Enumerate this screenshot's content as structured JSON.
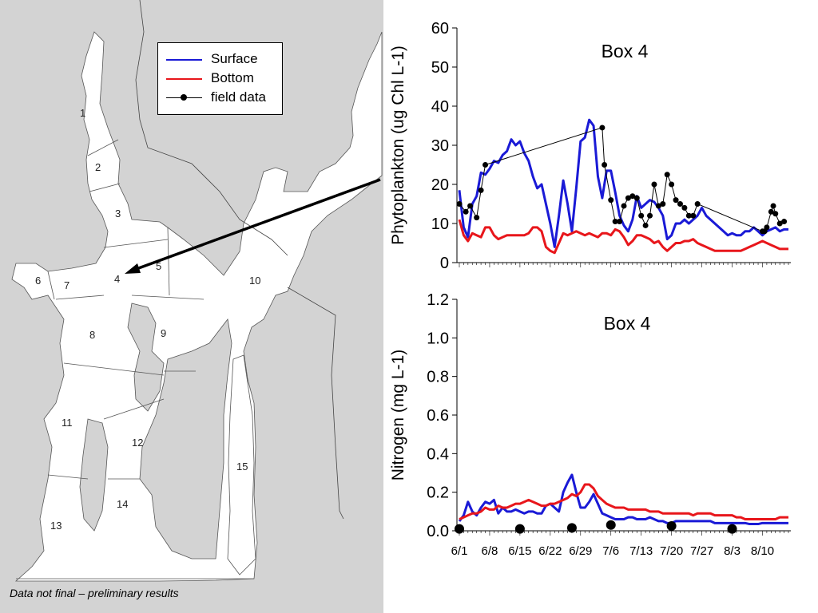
{
  "caption": "Data not final – preliminary results",
  "legend": {
    "items": [
      {
        "label": "Surface",
        "color": "#1a1ad6",
        "kind": "line"
      },
      {
        "label": "Bottom",
        "color": "#e8161b",
        "kind": "line"
      },
      {
        "label": "field data",
        "color": "#000000",
        "kind": "line-dot"
      }
    ]
  },
  "map": {
    "box_labels": [
      "1",
      "2",
      "3",
      "4",
      "5",
      "6",
      "7",
      "8",
      "9",
      "10",
      "11",
      "12",
      "13",
      "14",
      "15"
    ],
    "land_color": "#d3d3d3",
    "water_color": "#ffffff"
  },
  "chart_data": [
    {
      "type": "line",
      "title": "Box 4",
      "ylabel": "Phytoplankton (ug Chl L-1)",
      "ylim": [
        0,
        60
      ],
      "yticks": [
        0,
        10,
        20,
        30,
        40,
        50,
        60
      ],
      "xlim": [
        0,
        76
      ],
      "grid": false,
      "series": [
        {
          "name": "Surface",
          "color": "#1a1ad6",
          "x": [
            0,
            1,
            2,
            3,
            4,
            5,
            6,
            7,
            8,
            9,
            10,
            11,
            12,
            13,
            14,
            15,
            16,
            17,
            18,
            19,
            20,
            21,
            22,
            23,
            24,
            25,
            26,
            27,
            28,
            29,
            30,
            31,
            32,
            33,
            34,
            35,
            36,
            37,
            38,
            39,
            40,
            41,
            42,
            43,
            44,
            45,
            46,
            47,
            48,
            49,
            50,
            51,
            52,
            53,
            54,
            55,
            56,
            57,
            58,
            59,
            60,
            61,
            62,
            63,
            64,
            65,
            66,
            67,
            68,
            69,
            70,
            71,
            72,
            73,
            74,
            75,
            76
          ],
          "y": [
            18.5,
            9,
            6.5,
            15,
            17,
            23,
            22.5,
            24,
            26,
            25.5,
            27.5,
            28.5,
            31.5,
            30,
            31,
            28,
            26,
            22,
            19,
            20,
            15,
            10,
            4,
            12,
            21,
            15,
            8,
            19,
            31,
            32,
            36.5,
            35,
            22,
            16.5,
            23.5,
            23.5,
            18,
            12,
            9.5,
            8,
            11,
            17,
            14,
            15,
            16,
            15.5,
            14,
            12,
            6,
            7,
            10,
            10,
            11,
            10,
            11,
            12,
            14,
            12,
            11,
            10,
            9,
            8,
            7,
            7.5,
            7,
            7,
            8,
            8,
            9,
            8,
            7,
            8,
            8.5,
            9,
            8,
            8.5,
            8.5
          ]
        },
        {
          "name": "Bottom",
          "color": "#e8161b",
          "x": [
            0,
            1,
            2,
            3,
            4,
            5,
            6,
            7,
            8,
            9,
            10,
            11,
            12,
            13,
            14,
            15,
            16,
            17,
            18,
            19,
            20,
            21,
            22,
            23,
            24,
            25,
            26,
            27,
            28,
            29,
            30,
            31,
            32,
            33,
            34,
            35,
            36,
            37,
            38,
            39,
            40,
            41,
            42,
            43,
            44,
            45,
            46,
            47,
            48,
            49,
            50,
            51,
            52,
            53,
            54,
            55,
            56,
            57,
            58,
            59,
            60,
            61,
            62,
            63,
            64,
            65,
            66,
            67,
            68,
            69,
            70,
            71,
            72,
            73,
            74,
            75,
            76
          ],
          "y": [
            11,
            7,
            5.5,
            7.5,
            7,
            6.5,
            9,
            9,
            7,
            6,
            6.5,
            7,
            7,
            7,
            7,
            7,
            7.5,
            9,
            9,
            8,
            4,
            3,
            2.5,
            5,
            7.5,
            7,
            7.5,
            8,
            7.5,
            7,
            7.5,
            7,
            6.5,
            7.5,
            7.5,
            7,
            8.5,
            8,
            6.5,
            4.5,
            5.5,
            7,
            7,
            6.5,
            6,
            5,
            5.5,
            4,
            3,
            4,
            5,
            5,
            5.5,
            5.5,
            6,
            5,
            4.5,
            4,
            3.5,
            3,
            3,
            3,
            3,
            3,
            3,
            3,
            3.5,
            4,
            4.5,
            5,
            5.5,
            5,
            4.5,
            4,
            3.5,
            3.5,
            3.5
          ]
        },
        {
          "name": "field data",
          "color": "#000000",
          "marker": "dot",
          "x": [
            0,
            1.5,
            2.5,
            4,
            5,
            6,
            33,
            33.5,
            35,
            36,
            37,
            38,
            39,
            40,
            41,
            42,
            43,
            44,
            45,
            46,
            47,
            48,
            49,
            50,
            51,
            52,
            53,
            54,
            55,
            56,
            57,
            58,
            59,
            60,
            70,
            70.5,
            71,
            72,
            72.5,
            73,
            74,
            75
          ],
          "y": [
            15,
            13,
            14.5,
            11.5,
            18.5,
            25,
            34.5,
            25,
            16,
            10.5,
            10.5,
            14.5,
            16.5,
            17,
            16.5,
            12,
            9.5,
            12,
            20,
            14.5,
            15,
            22.5,
            20,
            16,
            15,
            14,
            12,
            12,
            15,
            null,
            null,
            null,
            null,
            null,
            8,
            8,
            9,
            13,
            14.5,
            12.5,
            10,
            10.5
          ]
        }
      ]
    },
    {
      "type": "line",
      "title": "Box 4",
      "ylabel": "Nitrogen (mg L-1)",
      "ylim": [
        0,
        1.2
      ],
      "yticks": [
        0.0,
        0.2,
        0.4,
        0.6,
        0.8,
        1.0,
        1.2
      ],
      "ytick_labels": [
        "0.0",
        "0.2",
        "0.4",
        "0.6",
        "0.8",
        "1.0",
        "1.2"
      ],
      "xlim": [
        0,
        76
      ],
      "xtick_labels": [
        "6/1",
        "6/8",
        "6/15",
        "6/22",
        "6/29",
        "7/6",
        "7/13",
        "7/20",
        "7/27",
        "8/3",
        "8/10"
      ],
      "xtick_positions": [
        0,
        7,
        14,
        21,
        28,
        35,
        42,
        49,
        56,
        63,
        70
      ],
      "grid": false,
      "series": [
        {
          "name": "Surface",
          "color": "#1a1ad6",
          "x": [
            0,
            1,
            2,
            3,
            4,
            5,
            6,
            7,
            8,
            9,
            10,
            11,
            12,
            13,
            14,
            15,
            16,
            17,
            18,
            19,
            20,
            21,
            22,
            23,
            24,
            25,
            26,
            27,
            28,
            29,
            30,
            31,
            32,
            33,
            34,
            35,
            36,
            37,
            38,
            39,
            40,
            41,
            42,
            43,
            44,
            45,
            46,
            47,
            48,
            49,
            50,
            51,
            52,
            53,
            54,
            55,
            56,
            57,
            58,
            59,
            60,
            61,
            62,
            63,
            64,
            65,
            66,
            67,
            68,
            69,
            70,
            71,
            72,
            73,
            74,
            75,
            76
          ],
          "y": [
            0.05,
            0.08,
            0.15,
            0.1,
            0.08,
            0.12,
            0.15,
            0.14,
            0.16,
            0.09,
            0.12,
            0.1,
            0.1,
            0.11,
            0.1,
            0.09,
            0.1,
            0.1,
            0.09,
            0.09,
            0.13,
            0.14,
            0.12,
            0.1,
            0.2,
            0.25,
            0.29,
            0.2,
            0.12,
            0.12,
            0.15,
            0.19,
            0.14,
            0.09,
            0.08,
            0.07,
            0.06,
            0.06,
            0.06,
            0.07,
            0.07,
            0.06,
            0.06,
            0.06,
            0.07,
            0.06,
            0.05,
            0.05,
            0.04,
            0.04,
            0.05,
            0.05,
            0.05,
            0.05,
            0.05,
            0.05,
            0.05,
            0.05,
            0.05,
            0.04,
            0.04,
            0.04,
            0.04,
            0.04,
            0.04,
            0.04,
            0.04,
            0.035,
            0.035,
            0.035,
            0.04,
            0.04,
            0.04,
            0.04,
            0.04,
            0.04,
            0.04
          ]
        },
        {
          "name": "Bottom",
          "color": "#e8161b",
          "x": [
            0,
            1,
            2,
            3,
            4,
            5,
            6,
            7,
            8,
            9,
            10,
            11,
            12,
            13,
            14,
            15,
            16,
            17,
            18,
            19,
            20,
            21,
            22,
            23,
            24,
            25,
            26,
            27,
            28,
            29,
            30,
            31,
            32,
            33,
            34,
            35,
            36,
            37,
            38,
            39,
            40,
            41,
            42,
            43,
            44,
            45,
            46,
            47,
            48,
            49,
            50,
            51,
            52,
            53,
            54,
            55,
            56,
            57,
            58,
            59,
            60,
            61,
            62,
            63,
            64,
            65,
            66,
            67,
            68,
            69,
            70,
            71,
            72,
            73,
            74,
            75,
            76
          ],
          "y": [
            0.06,
            0.07,
            0.08,
            0.09,
            0.09,
            0.1,
            0.12,
            0.11,
            0.11,
            0.13,
            0.12,
            0.12,
            0.13,
            0.14,
            0.14,
            0.15,
            0.16,
            0.15,
            0.14,
            0.13,
            0.13,
            0.14,
            0.14,
            0.15,
            0.16,
            0.17,
            0.19,
            0.18,
            0.2,
            0.24,
            0.24,
            0.22,
            0.18,
            0.16,
            0.14,
            0.13,
            0.12,
            0.12,
            0.12,
            0.11,
            0.11,
            0.11,
            0.11,
            0.11,
            0.1,
            0.1,
            0.1,
            0.09,
            0.09,
            0.09,
            0.09,
            0.09,
            0.09,
            0.09,
            0.08,
            0.09,
            0.09,
            0.09,
            0.09,
            0.08,
            0.08,
            0.08,
            0.08,
            0.08,
            0.07,
            0.07,
            0.06,
            0.06,
            0.06,
            0.06,
            0.06,
            0.06,
            0.06,
            0.06,
            0.07,
            0.07,
            0.07
          ]
        },
        {
          "name": "field data",
          "color": "#000000",
          "marker": "dot",
          "line": false,
          "x": [
            0,
            14,
            26,
            35,
            49,
            63
          ],
          "y": [
            0.01,
            0.01,
            0.015,
            0.03,
            0.025,
            0.01
          ]
        }
      ]
    }
  ]
}
